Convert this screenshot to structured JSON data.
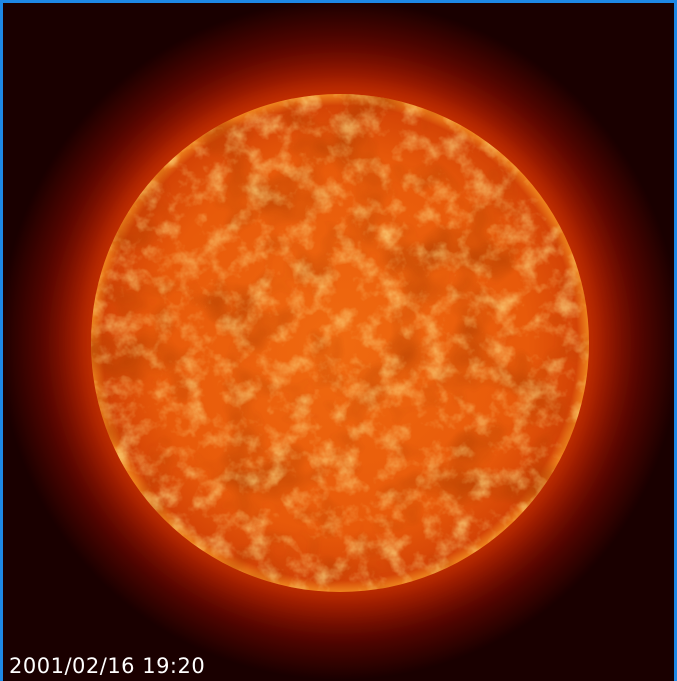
{
  "timestamp": "2001/02/16 19:20"
}
